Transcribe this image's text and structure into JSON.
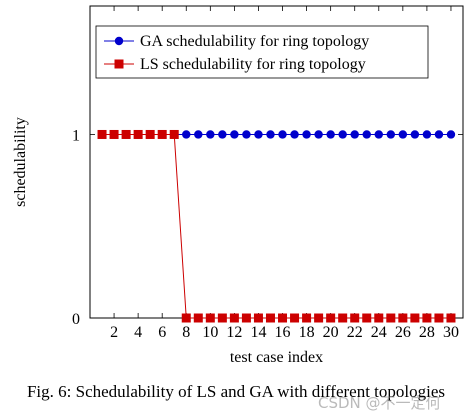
{
  "chart_data": {
    "type": "line",
    "xlabel": "test case index",
    "ylabel": "schedulability",
    "xlim": [
      0,
      31
    ],
    "ylim": [
      0,
      1.7
    ],
    "x_ticks": [
      "2",
      "4",
      "6",
      "8",
      "10",
      "12",
      "14",
      "16",
      "18",
      "20",
      "22",
      "24",
      "26",
      "28",
      "30"
    ],
    "y_ticks": [
      "0",
      "1"
    ],
    "grid": false,
    "legend_position": "top-left",
    "series": [
      {
        "name": "GA schedulability for ring topology",
        "color": "#0000cc",
        "marker": "circle",
        "x": [
          1,
          2,
          3,
          4,
          5,
          6,
          7,
          8,
          9,
          10,
          11,
          12,
          13,
          14,
          15,
          16,
          17,
          18,
          19,
          20,
          21,
          22,
          23,
          24,
          25,
          26,
          27,
          28,
          29,
          30
        ],
        "values": [
          1,
          1,
          1,
          1,
          1,
          1,
          1,
          1,
          1,
          1,
          1,
          1,
          1,
          1,
          1,
          1,
          1,
          1,
          1,
          1,
          1,
          1,
          1,
          1,
          1,
          1,
          1,
          1,
          1,
          1
        ]
      },
      {
        "name": "LS schedulability for ring topology",
        "color": "#cc0000",
        "marker": "square",
        "x": [
          1,
          2,
          3,
          4,
          5,
          6,
          7,
          8,
          9,
          10,
          11,
          12,
          13,
          14,
          15,
          16,
          17,
          18,
          19,
          20,
          21,
          22,
          23,
          24,
          25,
          26,
          27,
          28,
          29,
          30
        ],
        "values": [
          1,
          1,
          1,
          1,
          1,
          1,
          1,
          0,
          0,
          0,
          0,
          0,
          0,
          0,
          0,
          0,
          0,
          0,
          0,
          0,
          0,
          0,
          0,
          0,
          0,
          0,
          0,
          0,
          0,
          0
        ]
      }
    ]
  },
  "caption": "Fig. 6: Schedulability of LS and GA with different topologies",
  "watermark": "CSDN @不一定何"
}
